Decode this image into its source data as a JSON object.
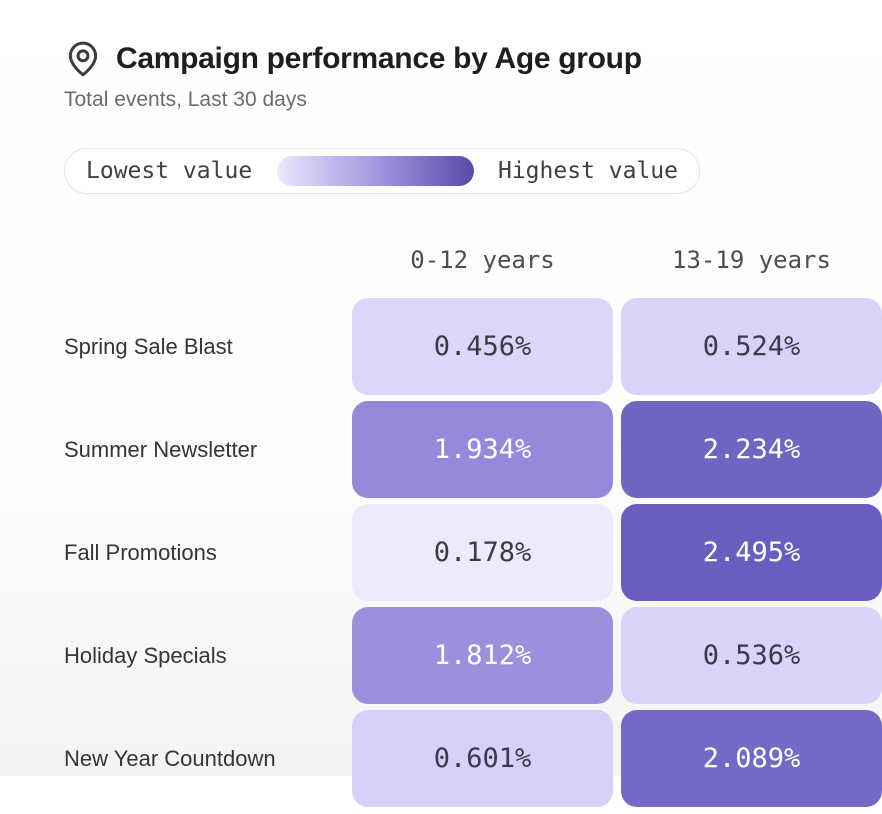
{
  "header": {
    "title": "Campaign performance by Age group",
    "subtitle": "Total events, Last 30 days",
    "icon": "location-pin-icon",
    "icon_color": "#3d3c40"
  },
  "legend": {
    "low_label": "Lowest value",
    "high_label": "Highest value",
    "gradient": [
      "#eae7fb",
      "#9c90de",
      "#594ba9"
    ]
  },
  "columns": [
    "0-12 years",
    "13-19 years"
  ],
  "rows": [
    {
      "label": "Spring Sale Blast",
      "cells": [
        {
          "value": "0.456%",
          "bg": "#dbd6fa",
          "fg": "#3e3947"
        },
        {
          "value": "0.524%",
          "bg": "#d9d3fa",
          "fg": "#3e3947"
        }
      ]
    },
    {
      "label": "Summer Newsletter",
      "cells": [
        {
          "value": "1.934%",
          "bg": "#9689dc",
          "fg": "#ffffff"
        },
        {
          "value": "2.234%",
          "bg": "#7165c4",
          "fg": "#ffffff"
        }
      ]
    },
    {
      "label": "Fall Promotions",
      "cells": [
        {
          "value": "0.178%",
          "bg": "#edeafc",
          "fg": "#3e3947"
        },
        {
          "value": "2.495%",
          "bg": "#6a5dc0",
          "fg": "#ffffff"
        }
      ]
    },
    {
      "label": "Holiday Specials",
      "cells": [
        {
          "value": "1.812%",
          "bg": "#9c8fde",
          "fg": "#ffffff"
        },
        {
          "value": "0.536%",
          "bg": "#d9d4fa",
          "fg": "#3e3947"
        }
      ]
    },
    {
      "label": "New Year Countdown",
      "cells": [
        {
          "value": "0.601%",
          "bg": "#d6d1f9",
          "fg": "#3e3947"
        },
        {
          "value": "2.089%",
          "bg": "#7569c6",
          "fg": "#ffffff"
        }
      ]
    }
  ],
  "chart_data": {
    "type": "heatmap",
    "title": "Campaign performance by Age group",
    "subtitle": "Total events, Last 30 days",
    "columns": [
      "0-12 years",
      "13-19 years"
    ],
    "rows": [
      "Spring Sale Blast",
      "Summer Newsletter",
      "Fall Promotions",
      "Holiday Specials",
      "New Year Countdown"
    ],
    "values_percent": [
      [
        0.456,
        0.524
      ],
      [
        1.934,
        2.234
      ],
      [
        0.178,
        2.495
      ],
      [
        1.812,
        0.536
      ],
      [
        0.601,
        2.089
      ]
    ],
    "legend": {
      "low": "Lowest value",
      "high": "Highest value",
      "position": "top"
    },
    "color_scale": {
      "low": "#edeafc",
      "high": "#594ba9"
    }
  }
}
